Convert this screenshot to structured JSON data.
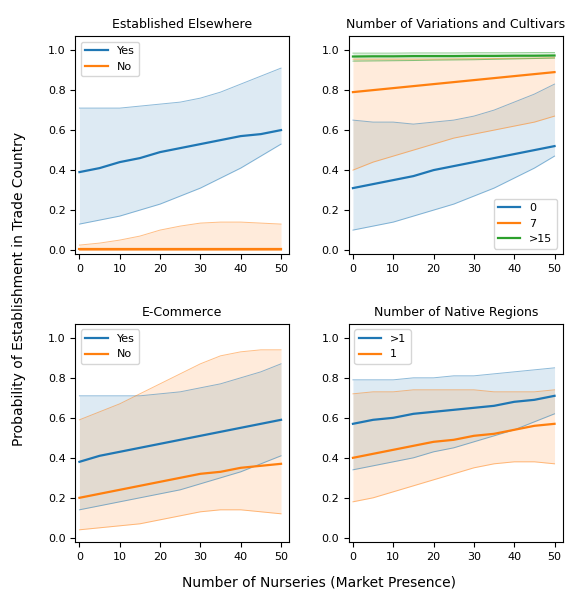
{
  "xlabel": "Number of Nurseries (Market Presence)",
  "ylabel": "Probability of Establishment in Trade Country",
  "chart_data": [
    {
      "type": "line",
      "title": "Established Elsewhere",
      "x": [
        0,
        5,
        10,
        15,
        20,
        25,
        30,
        35,
        40,
        45,
        50
      ],
      "xlim": [
        -1,
        52
      ],
      "xticks": [
        0,
        10,
        20,
        30,
        40,
        50
      ],
      "ylim": [
        -0.02,
        1.07
      ],
      "yticks": [
        0.0,
        0.2,
        0.4,
        0.6,
        0.8,
        1.0
      ],
      "legend": "upper left",
      "series": [
        {
          "name": "Yes",
          "values": [
            0.39,
            0.41,
            0.44,
            0.46,
            0.49,
            0.51,
            0.53,
            0.55,
            0.57,
            0.58,
            0.6
          ],
          "lo": [
            0.13,
            0.15,
            0.17,
            0.2,
            0.23,
            0.27,
            0.31,
            0.36,
            0.41,
            0.47,
            0.53
          ],
          "hi": [
            0.71,
            0.71,
            0.71,
            0.72,
            0.73,
            0.74,
            0.76,
            0.79,
            0.83,
            0.87,
            0.91
          ]
        },
        {
          "name": "No",
          "values": [
            0.005,
            0.005,
            0.005,
            0.005,
            0.005,
            0.005,
            0.005,
            0.005,
            0.005,
            0.005,
            0.005
          ],
          "lo": [
            0.0,
            0.0,
            0.0,
            0.0,
            0.0,
            0.0,
            0.0,
            0.0,
            0.0,
            0.0,
            0.0
          ],
          "hi": [
            0.025,
            0.035,
            0.05,
            0.07,
            0.1,
            0.12,
            0.135,
            0.14,
            0.14,
            0.135,
            0.13
          ]
        }
      ]
    },
    {
      "type": "line",
      "title": "Number of Variations and Cultivars",
      "x": [
        0,
        5,
        10,
        15,
        20,
        25,
        30,
        35,
        40,
        45,
        50
      ],
      "xlim": [
        -1,
        52
      ],
      "xticks": [
        0,
        10,
        20,
        30,
        40,
        50
      ],
      "ylim": [
        -0.02,
        1.07
      ],
      "yticks": [
        0.0,
        0.2,
        0.4,
        0.6,
        0.8,
        1.0
      ],
      "legend": "lower right",
      "series": [
        {
          "name": "0",
          "values": [
            0.31,
            0.33,
            0.35,
            0.37,
            0.4,
            0.42,
            0.44,
            0.46,
            0.48,
            0.5,
            0.52
          ],
          "lo": [
            0.1,
            0.12,
            0.14,
            0.17,
            0.2,
            0.23,
            0.27,
            0.31,
            0.36,
            0.41,
            0.47
          ],
          "hi": [
            0.65,
            0.64,
            0.64,
            0.63,
            0.64,
            0.65,
            0.67,
            0.7,
            0.74,
            0.78,
            0.83
          ]
        },
        {
          "name": "7",
          "values": [
            0.79,
            0.8,
            0.81,
            0.82,
            0.83,
            0.84,
            0.85,
            0.86,
            0.87,
            0.88,
            0.89
          ],
          "lo": [
            0.4,
            0.44,
            0.47,
            0.5,
            0.53,
            0.56,
            0.58,
            0.6,
            0.62,
            0.64,
            0.67
          ],
          "hi": [
            0.955,
            0.955,
            0.955,
            0.955,
            0.955,
            0.956,
            0.957,
            0.958,
            0.959,
            0.96,
            0.962
          ]
        },
        {
          "name": ">15",
          "values": [
            0.968,
            0.969,
            0.969,
            0.97,
            0.97,
            0.97,
            0.971,
            0.971,
            0.972,
            0.972,
            0.973
          ],
          "lo": [
            0.945,
            0.946,
            0.947,
            0.948,
            0.95,
            0.951,
            0.952,
            0.954,
            0.956,
            0.958,
            0.96
          ],
          "hi": [
            0.985,
            0.985,
            0.985,
            0.986,
            0.986,
            0.986,
            0.987,
            0.987,
            0.987,
            0.988,
            0.988
          ]
        }
      ]
    },
    {
      "type": "line",
      "title": "E-Commerce",
      "x": [
        0,
        5,
        10,
        15,
        20,
        25,
        30,
        35,
        40,
        45,
        50
      ],
      "xlim": [
        -1,
        52
      ],
      "xticks": [
        0,
        10,
        20,
        30,
        40,
        50
      ],
      "ylim": [
        -0.02,
        1.07
      ],
      "yticks": [
        0.0,
        0.2,
        0.4,
        0.6,
        0.8,
        1.0
      ],
      "legend": "upper left",
      "series": [
        {
          "name": "Yes",
          "values": [
            0.38,
            0.41,
            0.43,
            0.45,
            0.47,
            0.49,
            0.51,
            0.53,
            0.55,
            0.57,
            0.59
          ],
          "lo": [
            0.14,
            0.16,
            0.18,
            0.2,
            0.22,
            0.24,
            0.27,
            0.3,
            0.33,
            0.37,
            0.41
          ],
          "hi": [
            0.71,
            0.71,
            0.71,
            0.71,
            0.72,
            0.73,
            0.75,
            0.77,
            0.8,
            0.83,
            0.87
          ]
        },
        {
          "name": "No",
          "values": [
            0.2,
            0.22,
            0.24,
            0.26,
            0.28,
            0.3,
            0.32,
            0.33,
            0.35,
            0.36,
            0.37
          ],
          "lo": [
            0.04,
            0.05,
            0.06,
            0.07,
            0.09,
            0.11,
            0.13,
            0.14,
            0.14,
            0.13,
            0.12
          ],
          "hi": [
            0.59,
            0.63,
            0.67,
            0.72,
            0.77,
            0.82,
            0.87,
            0.91,
            0.93,
            0.94,
            0.94
          ]
        }
      ]
    },
    {
      "type": "line",
      "title": "Number of Native Regions",
      "x": [
        0,
        5,
        10,
        15,
        20,
        25,
        30,
        35,
        40,
        45,
        50
      ],
      "xlim": [
        -1,
        52
      ],
      "xticks": [
        0,
        10,
        20,
        30,
        40,
        50
      ],
      "ylim": [
        -0.02,
        1.07
      ],
      "yticks": [
        0.0,
        0.2,
        0.4,
        0.6,
        0.8,
        1.0
      ],
      "legend": "upper left",
      "series": [
        {
          "name": ">1",
          "values": [
            0.57,
            0.59,
            0.6,
            0.62,
            0.63,
            0.64,
            0.65,
            0.66,
            0.68,
            0.69,
            0.71
          ],
          "lo": [
            0.34,
            0.36,
            0.38,
            0.4,
            0.43,
            0.45,
            0.48,
            0.51,
            0.54,
            0.58,
            0.62
          ],
          "hi": [
            0.79,
            0.79,
            0.79,
            0.8,
            0.8,
            0.81,
            0.81,
            0.82,
            0.83,
            0.84,
            0.85
          ]
        },
        {
          "name": "1",
          "values": [
            0.4,
            0.42,
            0.44,
            0.46,
            0.48,
            0.49,
            0.51,
            0.52,
            0.54,
            0.56,
            0.57
          ],
          "lo": [
            0.18,
            0.2,
            0.23,
            0.26,
            0.29,
            0.32,
            0.35,
            0.37,
            0.38,
            0.38,
            0.37
          ],
          "hi": [
            0.72,
            0.73,
            0.73,
            0.74,
            0.74,
            0.74,
            0.74,
            0.73,
            0.73,
            0.73,
            0.74
          ]
        }
      ]
    }
  ]
}
